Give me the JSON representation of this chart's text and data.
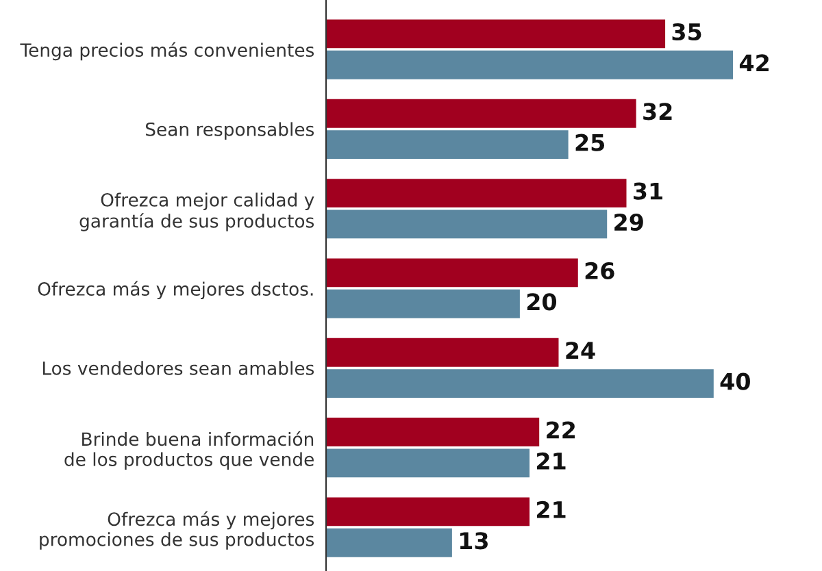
{
  "chart_data": {
    "type": "bar",
    "orientation": "horizontal",
    "data_labels": true,
    "grid": false,
    "legend": false,
    "categories": [
      "Tenga precios más convenientes",
      "Sean responsables",
      "Ofrezca mejor calidad y\ngarantía de sus productos",
      "Ofrezca más y mejores dsctos.",
      "Los vendedores sean amables",
      "Brinde buena información\nde los productos que vende",
      "Ofrezca más y mejores\npromociones de sus productos"
    ],
    "series": [
      {
        "color": "#a1001f",
        "values": [
          35,
          32,
          31,
          26,
          24,
          22,
          21
        ]
      },
      {
        "color": "#5b87a0",
        "values": [
          42,
          25,
          29,
          20,
          40,
          21,
          13
        ]
      }
    ]
  }
}
